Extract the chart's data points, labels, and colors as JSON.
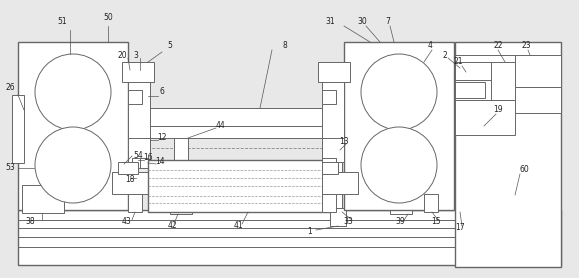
{
  "bg_color": "#e8e8e8",
  "line_color": "#666666",
  "lw": 0.7,
  "lw2": 1.0,
  "fig_width": 5.79,
  "fig_height": 2.78,
  "dpi": 100
}
